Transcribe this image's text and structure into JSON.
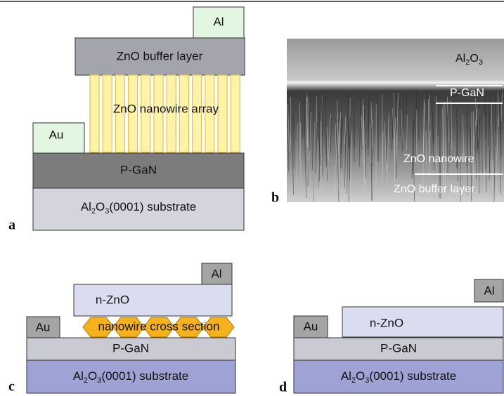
{
  "panels": {
    "a": {
      "label": "a",
      "top_contact": "Al",
      "buffer": "ZnO buffer layer",
      "nanowires": "ZnO nanowire array",
      "side_contact": "Au",
      "gan": "P-GaN",
      "substrate": [
        "Al",
        "2",
        "O",
        "3",
        "(0001) substrate"
      ]
    },
    "b": {
      "label": "b",
      "layers": {
        "sapphire": [
          "Al",
          "2",
          "O",
          "3"
        ],
        "gan": "P-GaN",
        "nanowire": "ZnO nanowire",
        "buffer": "ZnO buffer layer"
      }
    },
    "c": {
      "label": "c",
      "top_contact": "Al",
      "zno": "n-ZnO",
      "nanowires": "nanowire cross section",
      "side_contact": "Au",
      "gan": "P-GaN",
      "substrate": [
        "Al",
        "2",
        "O",
        "3",
        "(0001) substrate"
      ]
    },
    "d": {
      "label": "d",
      "top_contact": "Al",
      "zno": "n-ZnO",
      "side_contact": "Au",
      "gan": "P-GaN",
      "substrate": [
        "Al",
        "2",
        "O",
        "3",
        "(0001) substrate"
      ]
    }
  }
}
